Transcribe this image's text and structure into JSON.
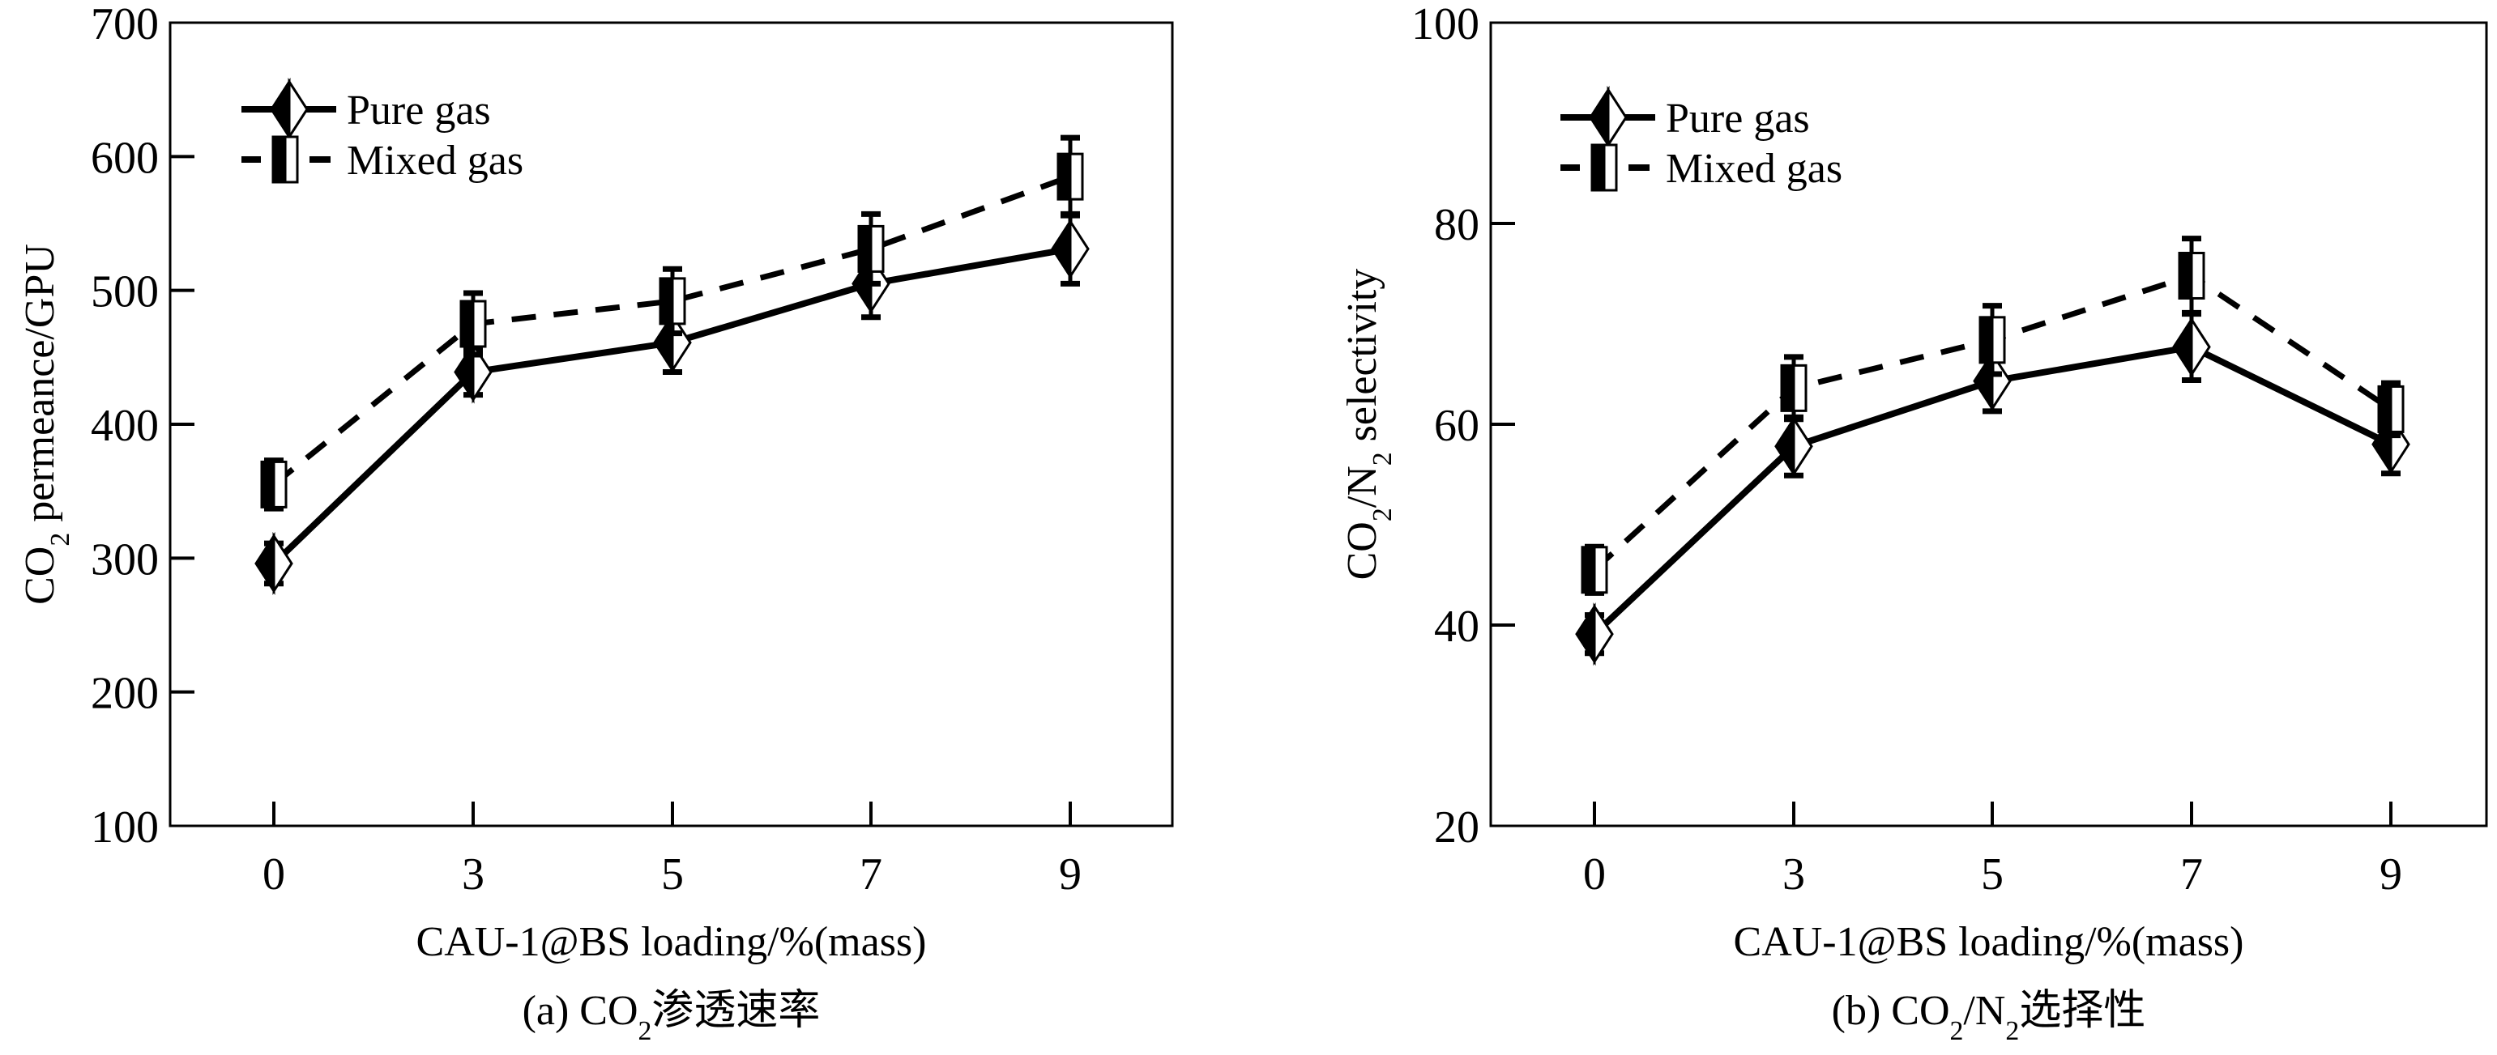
{
  "chart_data": [
    {
      "id": "a",
      "type": "line",
      "title": "",
      "caption": {
        "prefix": "(a) CO",
        "sub": "2",
        "suffix": "渗透速率"
      },
      "xlabel": "CAU-1@BS loading/%(mass)",
      "ylabel": {
        "prefix": "CO",
        "sub": "2",
        "suffix": " permeance/GPU"
      },
      "categories": [
        "0",
        "3",
        "5",
        "7",
        "9"
      ],
      "ylim": [
        100,
        700
      ],
      "yticks": [
        100,
        200,
        300,
        400,
        500,
        600,
        700
      ],
      "grid": false,
      "legend": {
        "position": "top-left"
      },
      "series": [
        {
          "name": "Pure gas",
          "line": "solid",
          "marker": "half-filled-diamond",
          "values": [
            296,
            439,
            461,
            505,
            531
          ],
          "errors": [
            15,
            17,
            22,
            25,
            26
          ]
        },
        {
          "name": "Mixed gas",
          "line": "dashed",
          "marker": "half-filled-square",
          "values": [
            355,
            475,
            492,
            531,
            585
          ],
          "errors": [
            18,
            23,
            24,
            26,
            29
          ]
        }
      ]
    },
    {
      "id": "b",
      "type": "line",
      "title": "",
      "caption": {
        "prefix": "(b) CO",
        "sub": "2",
        "mid": "/N",
        "sub2": "2",
        "suffix": "选择性"
      },
      "xlabel": "CAU-1@BS loading/%(mass)",
      "ylabel": {
        "prefix": "CO",
        "sub": "2",
        "mid": "/N",
        "sub2": "2",
        "suffix": " selectivity"
      },
      "categories": [
        "0",
        "3",
        "5",
        "7",
        "9"
      ],
      "ylim": [
        20,
        100
      ],
      "yticks": [
        20,
        40,
        60,
        80,
        100
      ],
      "grid": false,
      "legend": {
        "position": "top-left"
      },
      "series": [
        {
          "name": "Pure gas",
          "line": "solid",
          "marker": "half-filled-diamond",
          "values": [
            39.1,
            57.8,
            64.3,
            67.7,
            58.0
          ],
          "errors": [
            1.9,
            2.9,
            3.0,
            3.3,
            2.9
          ]
        },
        {
          "name": "Mixed gas",
          "line": "dashed",
          "marker": "half-filled-square",
          "values": [
            45.5,
            63.6,
            68.4,
            74.8,
            61.5
          ],
          "errors": [
            2.3,
            3.1,
            3.4,
            3.7,
            2.6
          ]
        }
      ]
    }
  ]
}
